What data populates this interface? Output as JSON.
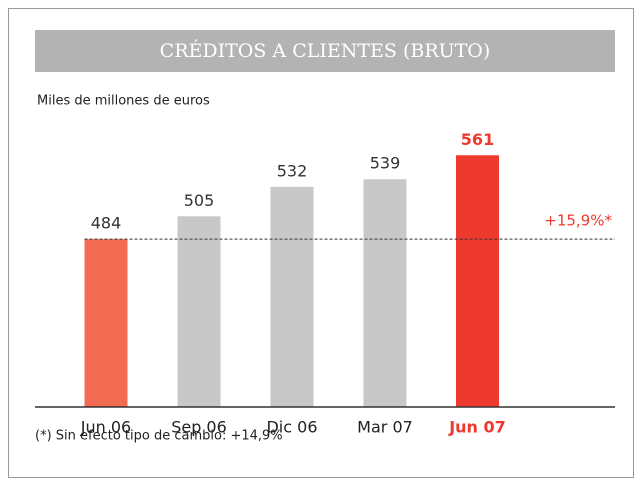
{
  "chart_data": {
    "type": "bar",
    "title": "CRÉDITOS A CLIENTES (BRUTO)",
    "subtitle": "Miles de millones de euros",
    "categories": [
      "Jun 06",
      "Sep 06",
      "Dic 06",
      "Mar 07",
      "Jun 07"
    ],
    "values": [
      484,
      505,
      532,
      539,
      561
    ],
    "colors": [
      "#f26b52",
      "#c8c8c8",
      "#c8c8c8",
      "#c8c8c8",
      "#ee3a2e"
    ],
    "highlight_index": 4,
    "highlight_color": "#ee3a2e",
    "ylim": [
      330,
      575
    ],
    "annotation": "+15,9%*",
    "footnote": "(*) Sin efecto tipo de cambio: +14,9%"
  }
}
